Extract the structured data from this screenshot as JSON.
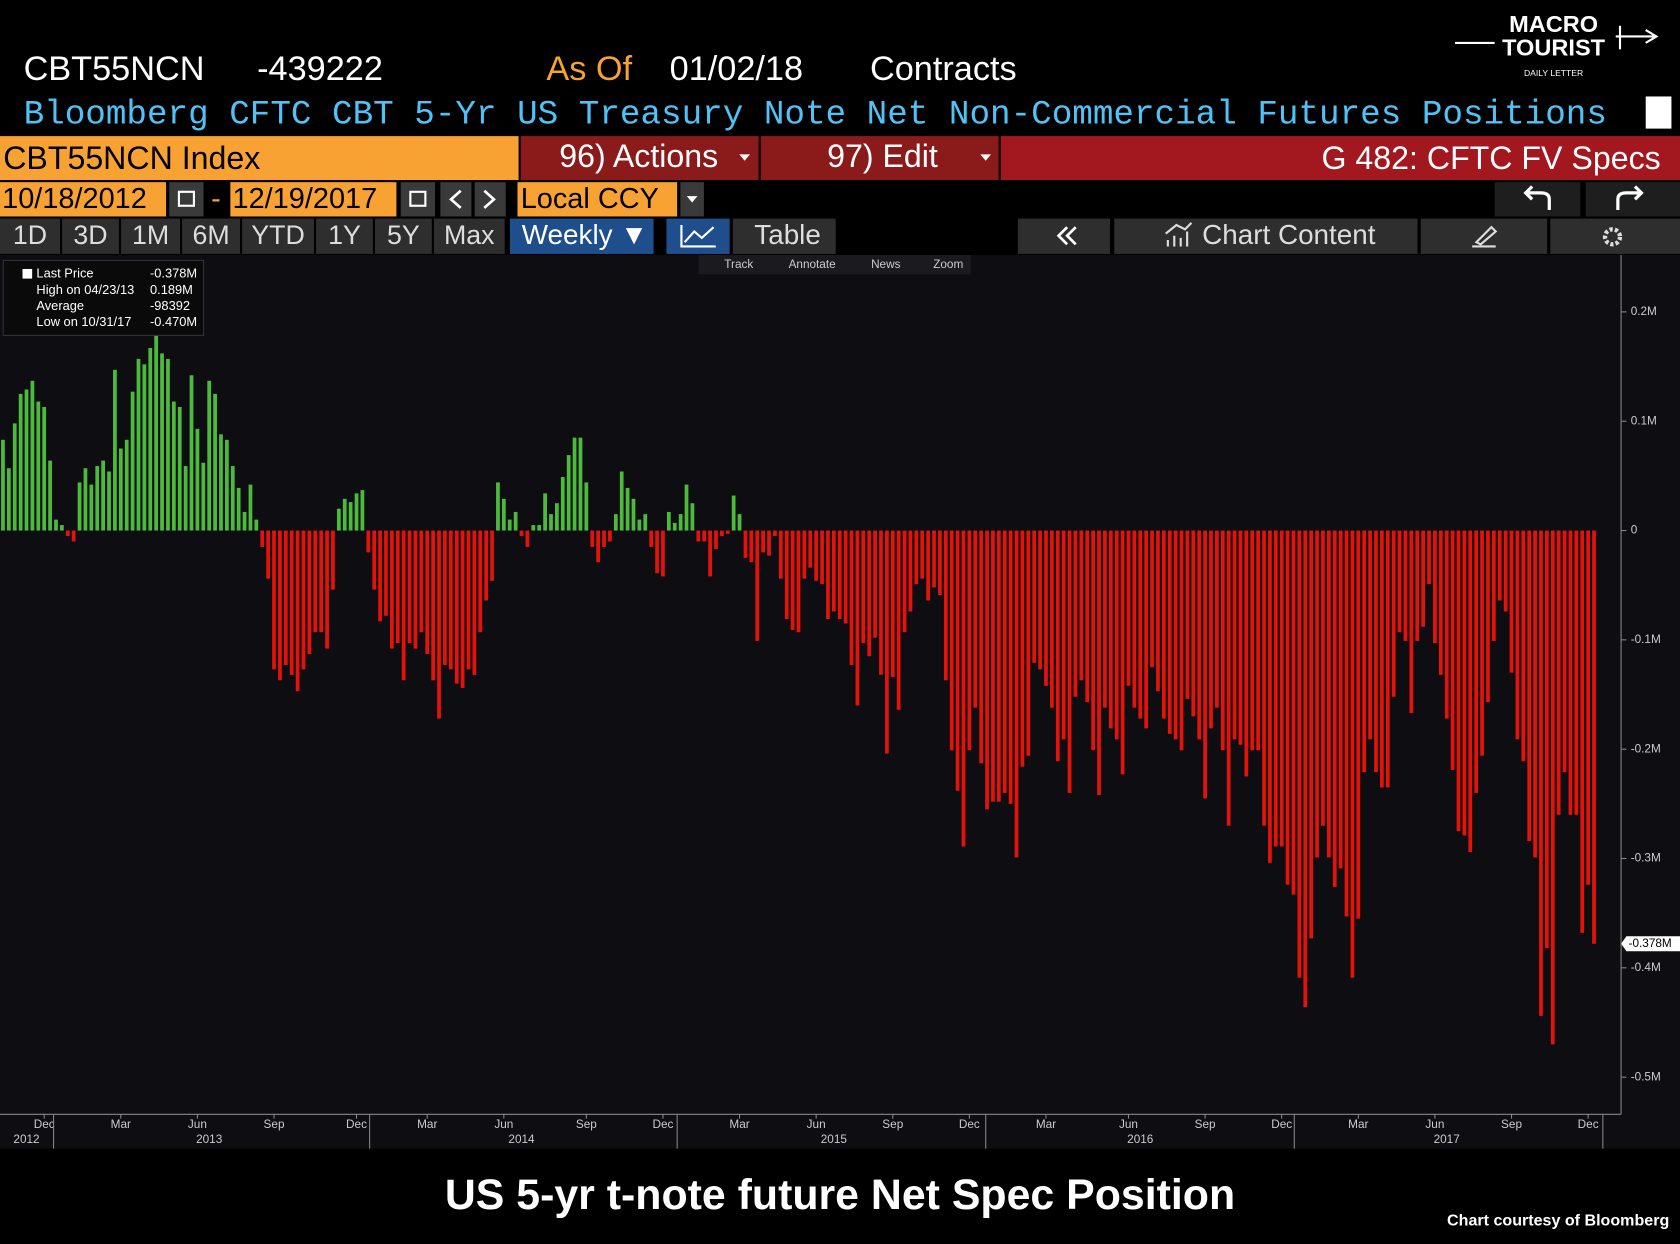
{
  "header": {
    "ticker": "CBT55NCN",
    "value": "-439222",
    "as_of_label": "As Of",
    "as_of_date": "01/02/18",
    "units": "Contracts",
    "description": "Bloomberg CFTC CBT 5-Yr US Treasury Note Net Non-Commercial Futures Positions"
  },
  "logo": {
    "line1": "MACRO",
    "line2": "TOURIST",
    "tagline": "DAILY LETTER"
  },
  "toolbar": {
    "security": "CBT55NCN Index",
    "actions": "96) Actions",
    "edit": "97) Edit",
    "function": "G 482: CFTC FV Specs",
    "start_date": "10/18/2012",
    "date_separator": "-",
    "end_date": "12/19/2017",
    "currency": "Local CCY",
    "periods": [
      "1D",
      "3D",
      "1M",
      "6M",
      "YTD",
      "1Y",
      "5Y",
      "Max"
    ],
    "frequency": "Weekly ▼",
    "table": "Table",
    "chart_content": "Chart Content",
    "tools": [
      "Track",
      "Annotate",
      "News",
      "Zoom"
    ]
  },
  "chart_data": {
    "type": "bar",
    "categories": [
      null,
      null,
      null,
      null,
      null,
      null,
      null,
      "Dec",
      null,
      null,
      null,
      null,
      null,
      null,
      null,
      null,
      null,
      null,
      null,
      null,
      "Mar",
      null,
      null,
      null,
      null,
      null,
      null,
      null,
      null,
      null,
      null,
      null,
      null,
      "Jun",
      null,
      null,
      null,
      null,
      null,
      null,
      null,
      null,
      null,
      null,
      null,
      null,
      "Sep",
      null,
      null,
      null,
      null,
      null,
      null,
      null,
      null,
      null,
      null,
      null,
      null,
      null,
      "Dec",
      null,
      null,
      null,
      null,
      null,
      null,
      null,
      null,
      null,
      null,
      null,
      "Mar",
      null,
      null,
      null,
      null,
      null,
      null,
      null,
      null,
      null,
      null,
      null,
      null,
      "Jun",
      null,
      null,
      null,
      null,
      null,
      null,
      null,
      null,
      null,
      null,
      null,
      null,
      null,
      "Sep",
      null,
      null,
      null,
      null,
      null,
      null,
      null,
      null,
      null,
      null,
      null,
      null,
      "Dec",
      null,
      null,
      null,
      null,
      null,
      null,
      null,
      null,
      null,
      null,
      null,
      null,
      "Mar",
      null,
      null,
      null,
      null,
      null,
      null,
      null,
      null,
      null,
      null,
      null,
      null,
      "Jun",
      null,
      null,
      null,
      null,
      null,
      null,
      null,
      null,
      null,
      null,
      null,
      null,
      "Sep",
      null,
      null,
      null,
      null,
      null,
      null,
      null,
      null,
      null,
      null,
      null,
      null,
      "Dec",
      null,
      null,
      null,
      null,
      null,
      null,
      null,
      null,
      null,
      null,
      null,
      null,
      "Mar",
      null,
      null,
      null,
      null,
      null,
      null,
      null,
      null,
      null,
      null,
      null,
      null,
      null,
      "Jun",
      null,
      null,
      null,
      null,
      null,
      null,
      null,
      null,
      null,
      null,
      null,
      null,
      "Sep",
      null,
      null,
      null,
      null,
      null,
      null,
      null,
      null,
      null,
      null,
      null,
      null,
      "Dec",
      null,
      null,
      null,
      null,
      null,
      null,
      null,
      null,
      null,
      null,
      null,
      null,
      "Mar",
      null,
      null,
      null,
      null,
      null,
      null,
      null,
      null,
      null,
      null,
      null,
      null,
      "Jun",
      null,
      null,
      null,
      null,
      null,
      null,
      null,
      null,
      null,
      null,
      null,
      null,
      "Sep",
      null,
      null,
      null,
      null,
      null,
      null,
      null,
      null,
      null,
      null,
      null,
      null,
      "Dec",
      null
    ],
    "category_years": [
      null,
      null,
      null,
      null,
      "2012",
      null,
      null,
      null,
      null,
      null,
      null,
      null,
      null,
      null,
      null,
      null,
      null,
      null,
      null,
      null,
      null,
      null,
      null,
      null,
      null,
      null,
      null,
      null,
      null,
      null,
      null,
      null,
      null,
      null,
      null,
      "2013",
      null,
      null,
      null,
      null,
      null,
      null,
      null,
      null,
      null,
      null,
      null,
      null,
      null,
      null,
      null,
      null,
      null,
      null,
      null,
      null,
      null,
      null,
      null,
      null,
      null,
      null,
      null,
      null,
      null,
      null,
      null,
      null,
      null,
      null,
      null,
      null,
      null,
      null,
      null,
      null,
      null,
      null,
      null,
      null,
      null,
      null,
      null,
      null,
      null,
      null,
      null,
      null,
      "2014",
      null,
      null,
      null,
      null,
      null,
      null,
      null,
      null,
      null,
      null,
      null,
      null,
      null,
      null,
      null,
      null,
      null,
      null,
      null,
      null,
      null,
      null,
      null,
      null,
      null,
      null,
      null,
      null,
      null,
      null,
      null,
      null,
      null,
      null,
      null,
      null,
      null,
      null,
      null,
      null,
      null,
      null,
      null,
      null,
      null,
      null,
      null,
      null,
      null,
      null,
      null,
      null,
      "2015",
      null,
      null,
      null,
      null,
      null,
      null,
      null,
      null,
      null,
      null,
      null,
      null,
      null,
      null,
      null,
      null,
      null,
      null,
      null,
      null,
      null,
      null,
      null,
      null,
      null,
      null,
      null,
      null,
      null,
      null,
      null,
      null,
      null,
      null,
      null,
      null,
      null,
      null,
      null,
      null,
      null,
      null,
      null,
      null,
      null,
      null,
      null,
      null,
      null,
      null,
      null,
      "2016",
      null,
      null,
      null,
      null,
      null,
      null,
      null,
      null,
      null,
      null,
      null,
      null,
      null,
      null,
      null,
      null,
      null,
      null,
      null,
      null,
      null,
      null,
      null,
      null,
      null,
      null,
      null,
      null,
      null,
      null,
      null,
      null,
      null,
      null,
      null,
      null,
      null,
      null,
      null,
      null,
      null,
      null,
      null,
      null,
      null,
      null,
      null,
      null,
      null,
      null,
      null,
      "2017",
      null,
      null,
      null,
      null,
      null,
      null,
      null,
      null,
      null,
      null,
      null,
      null,
      null,
      null,
      null,
      null,
      null,
      null,
      null,
      null,
      null,
      null,
      null,
      null,
      null
    ],
    "values": [
      0.083,
      0.057,
      0.098,
      0.125,
      0.129,
      0.137,
      0.118,
      0.113,
      0.064,
      0.01,
      0.005,
      -0.005,
      -0.01,
      0.044,
      0.057,
      0.042,
      0.059,
      0.064,
      0.054,
      0.147,
      0.075,
      0.083,
      0.127,
      0.157,
      0.152,
      0.167,
      0.189,
      0.162,
      0.157,
      0.118,
      0.113,
      0.059,
      0.142,
      0.093,
      0.062,
      0.137,
      0.125,
      0.088,
      0.083,
      0.059,
      0.039,
      0.017,
      0.042,
      0.01,
      -0.015,
      -0.044,
      -0.127,
      -0.137,
      -0.123,
      -0.132,
      -0.147,
      -0.127,
      -0.113,
      -0.093,
      -0.093,
      -0.108,
      -0.054,
      0.02,
      0.029,
      0.026,
      0.034,
      0.037,
      -0.02,
      -0.054,
      -0.083,
      -0.078,
      -0.108,
      -0.103,
      -0.137,
      -0.103,
      -0.108,
      -0.093,
      -0.113,
      -0.137,
      -0.172,
      -0.123,
      -0.127,
      -0.14,
      -0.144,
      -0.127,
      -0.132,
      -0.093,
      -0.064,
      -0.046,
      0.044,
      0.029,
      0.01,
      0.017,
      -0.005,
      -0.015,
      0.005,
      0.005,
      0.034,
      0.015,
      0.025,
      0.049,
      0.069,
      0.085,
      0.085,
      0.044,
      -0.015,
      -0.029,
      -0.015,
      -0.01,
      0.015,
      0.054,
      0.039,
      0.029,
      0.01,
      0.015,
      -0.015,
      -0.039,
      -0.042,
      0.017,
      0.007,
      0.015,
      0.042,
      0.025,
      -0.01,
      -0.01,
      -0.042,
      -0.017,
      -0.005,
      -0.003,
      0.032,
      0.015,
      -0.025,
      -0.029,
      -0.101,
      -0.02,
      -0.023,
      -0.005,
      -0.044,
      -0.081,
      -0.091,
      -0.093,
      -0.044,
      -0.034,
      -0.046,
      -0.049,
      -0.081,
      -0.074,
      -0.081,
      -0.085,
      -0.123,
      -0.16,
      -0.103,
      -0.115,
      -0.098,
      -0.132,
      -0.204,
      -0.134,
      -0.164,
      -0.093,
      -0.074,
      -0.049,
      -0.044,
      -0.064,
      -0.052,
      -0.059,
      -0.137,
      -0.201,
      -0.238,
      -0.289,
      -0.201,
      -0.162,
      -0.213,
      -0.255,
      -0.248,
      -0.248,
      -0.24,
      -0.25,
      -0.299,
      -0.216,
      -0.206,
      -0.121,
      -0.127,
      -0.142,
      -0.162,
      -0.211,
      -0.191,
      -0.24,
      -0.152,
      -0.137,
      -0.157,
      -0.201,
      -0.242,
      -0.162,
      -0.181,
      -0.191,
      -0.223,
      -0.142,
      -0.162,
      -0.172,
      -0.181,
      -0.125,
      -0.147,
      -0.172,
      -0.186,
      -0.191,
      -0.201,
      -0.154,
      -0.17,
      -0.191,
      -0.245,
      -0.181,
      -0.162,
      -0.201,
      -0.27,
      -0.191,
      -0.196,
      -0.225,
      -0.201,
      -0.201,
      -0.27,
      -0.304,
      -0.289,
      -0.289,
      -0.324,
      -0.333,
      -0.409,
      -0.436,
      -0.373,
      -0.299,
      -0.27,
      -0.299,
      -0.326,
      -0.309,
      -0.353,
      -0.409,
      -0.355,
      -0.221,
      -0.191,
      -0.221,
      -0.235,
      -0.235,
      -0.152,
      -0.093,
      -0.101,
      -0.167,
      -0.101,
      -0.088,
      -0.049,
      -0.103,
      -0.132,
      -0.172,
      -0.219,
      -0.275,
      -0.279,
      -0.294,
      -0.24,
      -0.206,
      -0.157,
      -0.101,
      -0.064,
      -0.074,
      -0.13,
      -0.191,
      -0.211,
      -0.284,
      -0.299,
      -0.444,
      -0.382,
      -0.47,
      -0.26,
      -0.221,
      -0.26,
      -0.26,
      -0.368,
      -0.324,
      -0.378
    ],
    "colors": {
      "positive": "#4cbb3c",
      "negative": "#e3120b"
    },
    "ylim": [
      -0.534,
      0.252
    ],
    "yticks": [
      {
        "value": 0.2,
        "label": "0.2M"
      },
      {
        "value": 0.1,
        "label": "0.1M"
      },
      0,
      {
        "value": -0.1,
        "label": "-0.1M"
      },
      {
        "value": -0.2,
        "label": "-0.2M"
      },
      {
        "value": -0.3,
        "label": "-0.3M"
      },
      {
        "value": -0.4,
        "label": "-0.4M"
      },
      {
        "value": -0.5,
        "label": "-0.5M"
      }
    ],
    "grid": false,
    "legend": [
      {
        "label": "Last Price",
        "value": "-0.378M"
      },
      {
        "label": "High on 04/23/13",
        "value": "0.189M"
      },
      {
        "label": "Average",
        "value": "-98392"
      },
      {
        "label": "Low on 10/31/17",
        "value": "-0.470M"
      }
    ],
    "last_price_label": "-0.378M"
  },
  "caption": "US 5-yr t-note future Net Spec Position",
  "credit": "Chart courtesy of Bloomberg"
}
